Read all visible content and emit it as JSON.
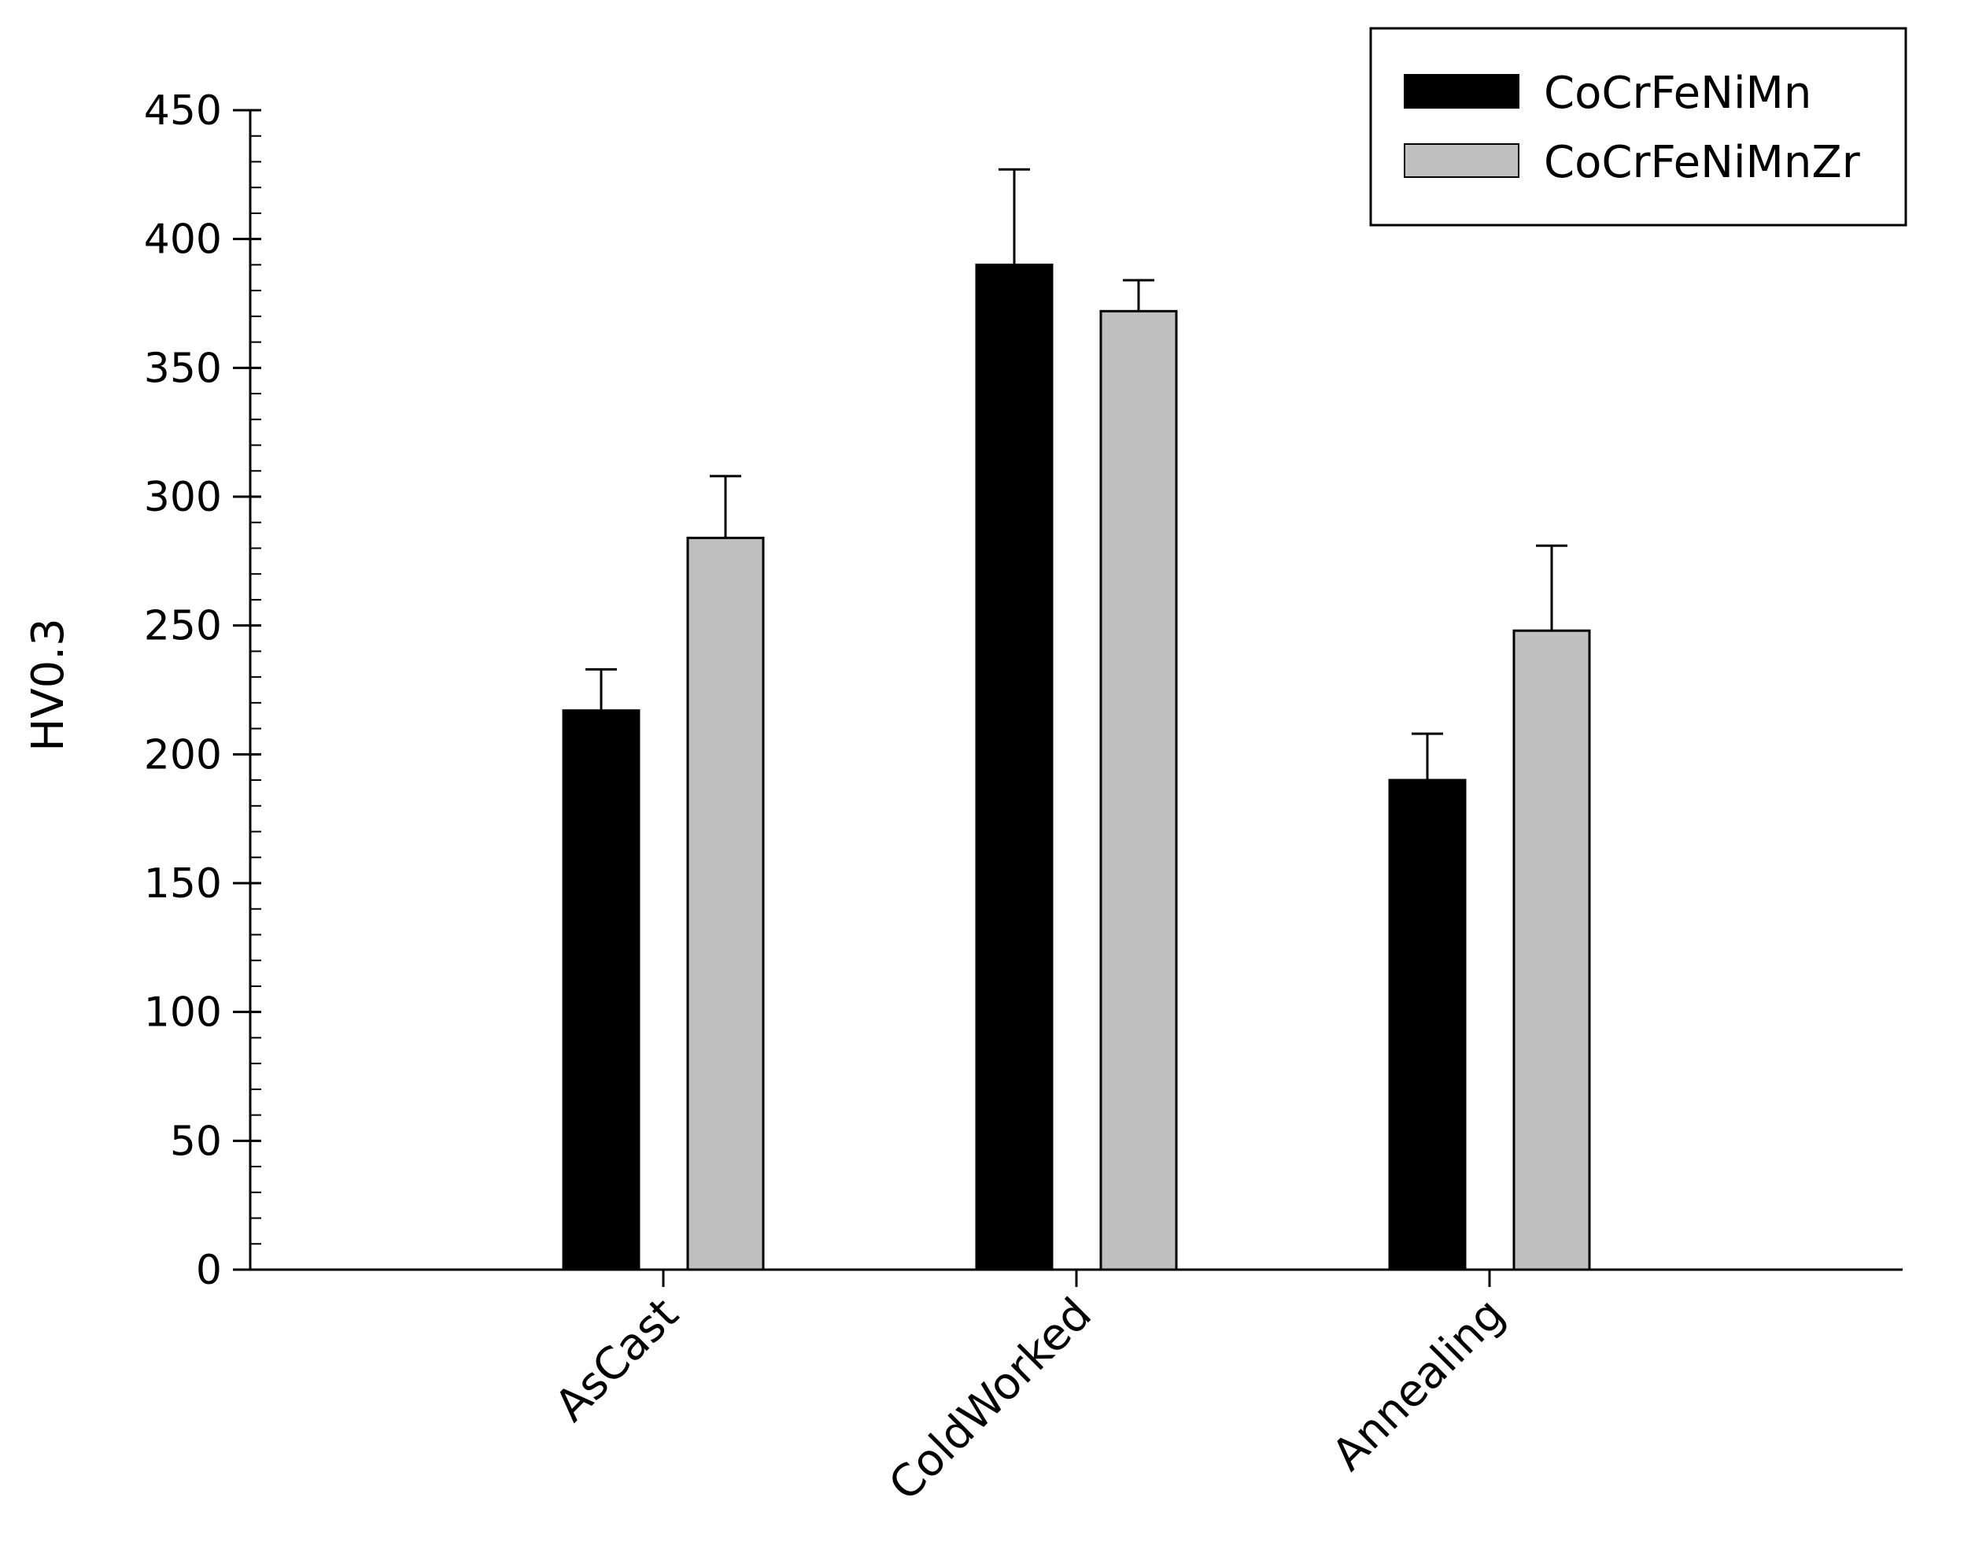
{
  "chart_data": {
    "type": "bar",
    "title": "",
    "xlabel": "",
    "ylabel": "HV0.3",
    "ylim": [
      0,
      450
    ],
    "yticks": [
      0,
      50,
      100,
      150,
      200,
      250,
      300,
      350,
      400,
      450
    ],
    "minor_tick_step": 10,
    "grid": false,
    "legend_position": "top-right",
    "categories": [
      "AsCast",
      "ColdWorked",
      "Annealing"
    ],
    "series": [
      {
        "name": "CoCrFeNiMn",
        "color": "#000000",
        "values": [
          217,
          390,
          190
        ],
        "errors": [
          16,
          37,
          18
        ]
      },
      {
        "name": "CoCrFeNiMnZr",
        "color": "#c0c0c0",
        "values": [
          284,
          372,
          248
        ],
        "errors": [
          24,
          12,
          33
        ]
      }
    ]
  }
}
